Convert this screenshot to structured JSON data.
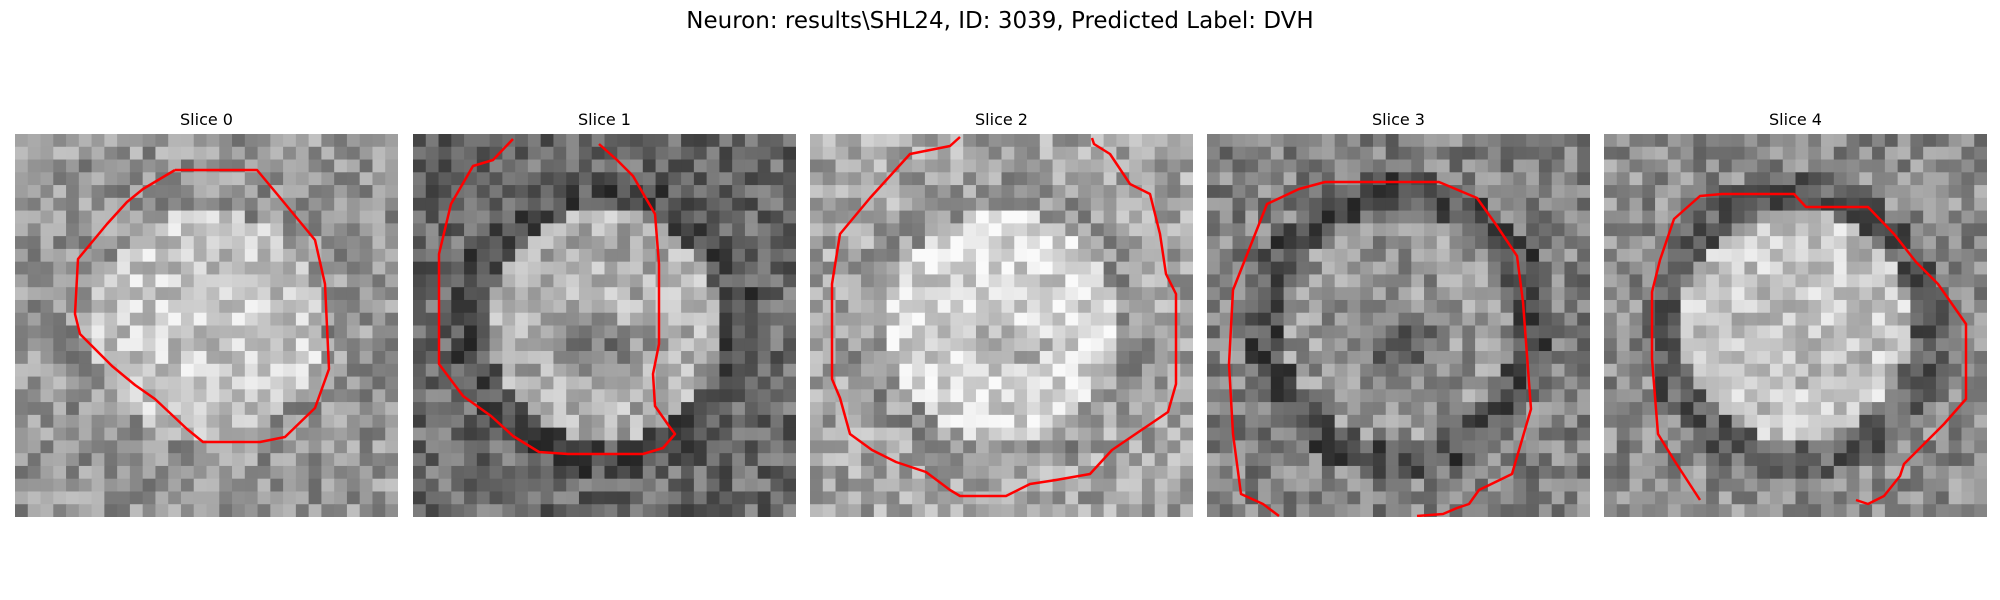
{
  "figure": {
    "title": "Neuron: results\\SHL24, ID: 3039, Predicted Label: DVH"
  },
  "panels": [
    {
      "title": "Slice 0",
      "center_gray": 200,
      "surround_gray": 150,
      "ring_gray": 150,
      "dark_center": false,
      "contour_color": "#ff0000"
    },
    {
      "title": "Slice 1",
      "center_gray": 175,
      "surround_gray": 105,
      "ring_gray": 80,
      "dark_center": true,
      "contour_color": "#ff0000"
    },
    {
      "title": "Slice 2",
      "center_gray": 215,
      "surround_gray": 165,
      "ring_gray": 150,
      "dark_center": true,
      "contour_color": "#ff0000"
    },
    {
      "title": "Slice 3",
      "center_gray": 150,
      "surround_gray": 130,
      "ring_gray": 80,
      "dark_center": true,
      "contour_color": "#ff0000"
    },
    {
      "title": "Slice 4",
      "center_gray": 195,
      "surround_gray": 140,
      "ring_gray": 95,
      "dark_center": false,
      "contour_color": "#ff0000"
    }
  ]
}
